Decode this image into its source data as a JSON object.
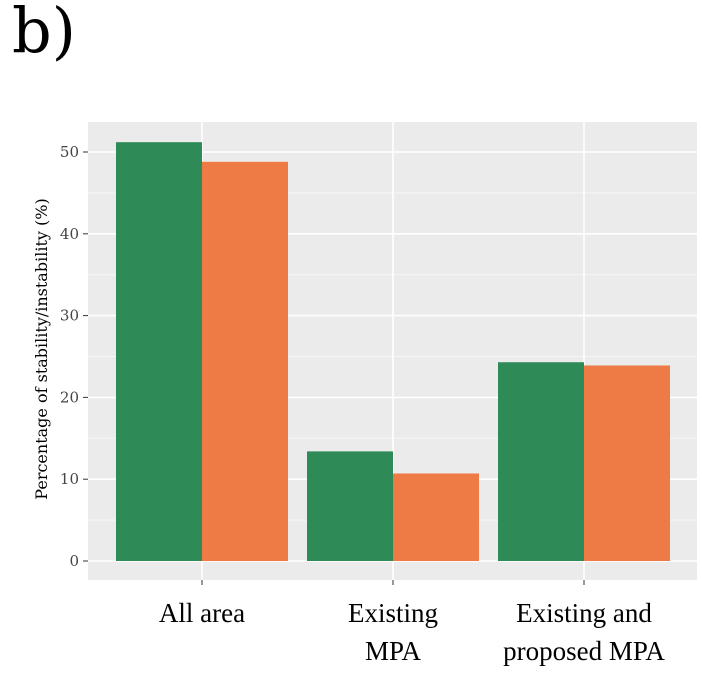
{
  "panel_label": "b)",
  "chart_data": {
    "type": "bar",
    "title": "",
    "xlabel": "",
    "ylabel": "Percentage of stability/instability (%)",
    "categories": [
      [
        "All area"
      ],
      [
        "Existing",
        "MPA"
      ],
      [
        "Existing and",
        "proposed MPA"
      ]
    ],
    "series": [
      {
        "color": "#2e8b57",
        "values": [
          51.2,
          13.4,
          24.3
        ]
      },
      {
        "color": "#ee7b45",
        "values": [
          48.8,
          10.7,
          23.9
        ]
      }
    ],
    "ylim": [
      0,
      53
    ],
    "yticks": [
      0,
      10,
      20,
      30,
      40,
      50
    ],
    "grid": true,
    "legend": "none",
    "background": "#ebebeb"
  }
}
